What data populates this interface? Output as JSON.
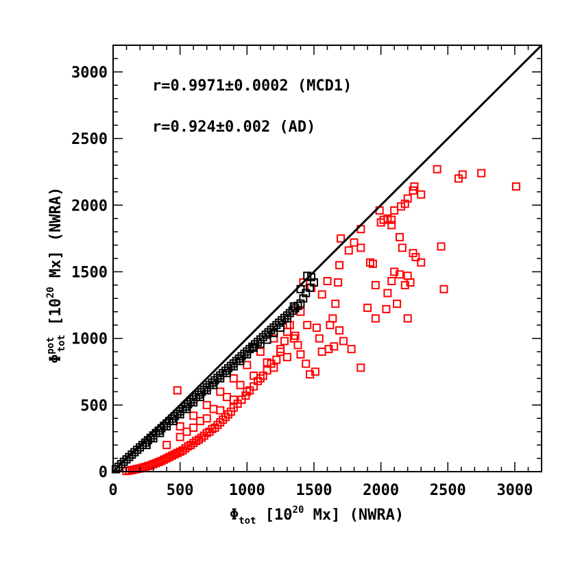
{
  "chart_data": {
    "type": "scatter",
    "xlabel": {
      "symbol": "Φ",
      "sub": "tot",
      "text_pre": " [10",
      "sup": "20",
      "text_post": " Mx] (NWRA)"
    },
    "ylabel": {
      "symbol": "Φ",
      "sup_top": "pot",
      "sub": "tot",
      "text_pre": " [10",
      "sup": "20",
      "text_post": " Mx] (NWRA)"
    },
    "xlim": [
      0,
      3200
    ],
    "ylim": [
      0,
      3200
    ],
    "xticks": [
      0,
      500,
      1000,
      1500,
      2000,
      2500,
      3000
    ],
    "yticks": [
      0,
      500,
      1000,
      1500,
      2000,
      2500,
      3000
    ],
    "x_minor_step": 100,
    "y_minor_step": 100,
    "reference_line": {
      "from": [
        0,
        0
      ],
      "to": [
        3200,
        3200
      ],
      "color": "#000000"
    },
    "annotations": [
      "r=0.9971±0.0002 (MCD1)",
      "r=0.924±0.002 (AD)"
    ],
    "marker": "open-square",
    "colors": {
      "MCD1": "#000000",
      "AD": "#ff0000"
    },
    "series": [
      {
        "name": "MCD1",
        "color": "#000000",
        "points": [
          [
            20,
            18
          ],
          [
            40,
            37
          ],
          [
            60,
            56
          ],
          [
            80,
            74
          ],
          [
            100,
            92
          ],
          [
            120,
            110
          ],
          [
            140,
            128
          ],
          [
            160,
            146
          ],
          [
            180,
            164
          ],
          [
            200,
            182
          ],
          [
            220,
            200
          ],
          [
            240,
            218
          ],
          [
            260,
            236
          ],
          [
            280,
            254
          ],
          [
            300,
            272
          ],
          [
            320,
            290
          ],
          [
            340,
            308
          ],
          [
            360,
            326
          ],
          [
            380,
            344
          ],
          [
            400,
            362
          ],
          [
            420,
            380
          ],
          [
            440,
            398
          ],
          [
            460,
            416
          ],
          [
            480,
            434
          ],
          [
            500,
            452
          ],
          [
            520,
            470
          ],
          [
            540,
            488
          ],
          [
            560,
            506
          ],
          [
            580,
            524
          ],
          [
            600,
            542
          ],
          [
            620,
            560
          ],
          [
            640,
            578
          ],
          [
            660,
            596
          ],
          [
            680,
            614
          ],
          [
            700,
            632
          ],
          [
            720,
            650
          ],
          [
            740,
            668
          ],
          [
            760,
            686
          ],
          [
            780,
            704
          ],
          [
            800,
            722
          ],
          [
            820,
            740
          ],
          [
            840,
            758
          ],
          [
            860,
            776
          ],
          [
            880,
            794
          ],
          [
            900,
            812
          ],
          [
            920,
            830
          ],
          [
            940,
            848
          ],
          [
            960,
            866
          ],
          [
            980,
            884
          ],
          [
            1000,
            902
          ],
          [
            1020,
            920
          ],
          [
            1040,
            938
          ],
          [
            1060,
            956
          ],
          [
            1080,
            974
          ],
          [
            1100,
            992
          ],
          [
            1120,
            1010
          ],
          [
            1140,
            1028
          ],
          [
            1160,
            1046
          ],
          [
            1180,
            1064
          ],
          [
            1200,
            1082
          ],
          [
            1220,
            1100
          ],
          [
            1240,
            1118
          ],
          [
            1260,
            1136
          ],
          [
            1280,
            1154
          ],
          [
            1300,
            1172
          ],
          [
            1320,
            1190
          ],
          [
            1340,
            1208
          ],
          [
            1360,
            1226
          ],
          [
            1380,
            1244
          ],
          [
            1400,
            1262
          ],
          [
            1420,
            1300
          ],
          [
            1440,
            1340
          ],
          [
            1470,
            1380
          ],
          [
            1500,
            1420
          ],
          [
            1480,
            1460
          ],
          [
            1450,
            1470
          ],
          [
            1400,
            1370
          ],
          [
            1350,
            1240
          ],
          [
            1300,
            1150
          ],
          [
            1250,
            1080
          ],
          [
            1200,
            1040
          ],
          [
            1150,
            990
          ],
          [
            1100,
            960
          ],
          [
            1050,
            930
          ],
          [
            1000,
            880
          ],
          [
            950,
            830
          ],
          [
            900,
            790
          ],
          [
            850,
            740
          ],
          [
            800,
            700
          ],
          [
            750,
            650
          ],
          [
            700,
            610
          ],
          [
            650,
            560
          ],
          [
            600,
            520
          ],
          [
            550,
            470
          ],
          [
            500,
            430
          ],
          [
            450,
            380
          ],
          [
            400,
            340
          ],
          [
            350,
            290
          ],
          [
            300,
            250
          ],
          [
            250,
            200
          ]
        ]
      },
      {
        "name": "AD",
        "color": "#ff0000",
        "points": [
          [
            3010,
            2140
          ],
          [
            2750,
            2240
          ],
          [
            2610,
            2230
          ],
          [
            2580,
            2200
          ],
          [
            2420,
            2270
          ],
          [
            2300,
            2080
          ],
          [
            2250,
            2140
          ],
          [
            2240,
            2110
          ],
          [
            2200,
            2050
          ],
          [
            2180,
            2010
          ],
          [
            2150,
            1990
          ],
          [
            2100,
            1960
          ],
          [
            2080,
            1890
          ],
          [
            2050,
            1900
          ],
          [
            2020,
            1890
          ],
          [
            2000,
            1870
          ],
          [
            1990,
            1960
          ],
          [
            2080,
            1850
          ],
          [
            2140,
            1760
          ],
          [
            2160,
            1680
          ],
          [
            2240,
            1640
          ],
          [
            2260,
            1610
          ],
          [
            2300,
            1570
          ],
          [
            2450,
            1690
          ],
          [
            2470,
            1370
          ],
          [
            2100,
            1500
          ],
          [
            2140,
            1480
          ],
          [
            2200,
            1470
          ],
          [
            2220,
            1420
          ],
          [
            2180,
            1400
          ],
          [
            2080,
            1430
          ],
          [
            2050,
            1340
          ],
          [
            1960,
            1400
          ],
          [
            1940,
            1560
          ],
          [
            1920,
            1570
          ],
          [
            1900,
            1230
          ],
          [
            1960,
            1150
          ],
          [
            2200,
            1150
          ],
          [
            2120,
            1260
          ],
          [
            2040,
            1220
          ],
          [
            1850,
            1680
          ],
          [
            1850,
            1820
          ],
          [
            1800,
            1720
          ],
          [
            1760,
            1660
          ],
          [
            1700,
            1750
          ],
          [
            1690,
            1550
          ],
          [
            1680,
            1420
          ],
          [
            1660,
            1260
          ],
          [
            1640,
            1150
          ],
          [
            1620,
            1100
          ],
          [
            1850,
            780
          ],
          [
            1780,
            920
          ],
          [
            1720,
            980
          ],
          [
            1690,
            1060
          ],
          [
            1650,
            940
          ],
          [
            1610,
            920
          ],
          [
            1560,
            900
          ],
          [
            1540,
            1000
          ],
          [
            1520,
            1080
          ],
          [
            1510,
            750
          ],
          [
            1470,
            730
          ],
          [
            1440,
            810
          ],
          [
            1400,
            880
          ],
          [
            1380,
            950
          ],
          [
            1360,
            1020
          ],
          [
            1320,
            1100
          ],
          [
            1300,
            1050
          ],
          [
            1280,
            980
          ],
          [
            1250,
            900
          ],
          [
            1220,
            840
          ],
          [
            1180,
            810
          ],
          [
            1150,
            760
          ],
          [
            1120,
            720
          ],
          [
            1080,
            680
          ],
          [
            1050,
            640
          ],
          [
            1020,
            610
          ],
          [
            990,
            570
          ],
          [
            960,
            540
          ],
          [
            930,
            510
          ],
          [
            900,
            480
          ],
          [
            880,
            450
          ],
          [
            860,
            430
          ],
          [
            840,
            410
          ],
          [
            820,
            390
          ],
          [
            800,
            370
          ],
          [
            780,
            350
          ],
          [
            760,
            330
          ],
          [
            740,
            320
          ],
          [
            720,
            300
          ],
          [
            700,
            290
          ],
          [
            680,
            270
          ],
          [
            660,
            255
          ],
          [
            640,
            240
          ],
          [
            620,
            230
          ],
          [
            600,
            215
          ],
          [
            580,
            200
          ],
          [
            560,
            190
          ],
          [
            540,
            175
          ],
          [
            520,
            160
          ],
          [
            500,
            150
          ],
          [
            480,
            140
          ],
          [
            460,
            130
          ],
          [
            440,
            120
          ],
          [
            420,
            110
          ],
          [
            400,
            100
          ],
          [
            380,
            90
          ],
          [
            360,
            80
          ],
          [
            340,
            72
          ],
          [
            320,
            64
          ],
          [
            300,
            56
          ],
          [
            280,
            48
          ],
          [
            260,
            42
          ],
          [
            240,
            36
          ],
          [
            220,
            30
          ],
          [
            200,
            24
          ],
          [
            180,
            20
          ],
          [
            160,
            16
          ],
          [
            140,
            12
          ],
          [
            120,
            8
          ],
          [
            100,
            5
          ],
          [
            1000,
            800
          ],
          [
            1100,
            900
          ],
          [
            1200,
            1000
          ],
          [
            1300,
            1100
          ],
          [
            1400,
            1200
          ],
          [
            900,
            700
          ],
          [
            800,
            600
          ],
          [
            700,
            500
          ],
          [
            600,
            420
          ],
          [
            500,
            340
          ],
          [
            1050,
            720
          ],
          [
            1150,
            820
          ],
          [
            1250,
            920
          ],
          [
            1350,
            1000
          ],
          [
            1450,
            1100
          ],
          [
            950,
            650
          ],
          [
            850,
            560
          ],
          [
            750,
            470
          ],
          [
            650,
            380
          ],
          [
            550,
            300
          ],
          [
            1000,
            600
          ],
          [
            1100,
            700
          ],
          [
            1200,
            780
          ],
          [
            1300,
            860
          ],
          [
            900,
            540
          ],
          [
            800,
            460
          ],
          [
            700,
            400
          ],
          [
            600,
            330
          ],
          [
            500,
            260
          ],
          [
            400,
            200
          ],
          [
            480,
            610
          ],
          [
            1420,
            1420
          ],
          [
            1480,
            1380
          ],
          [
            1560,
            1330
          ],
          [
            1600,
            1430
          ]
        ]
      }
    ]
  }
}
